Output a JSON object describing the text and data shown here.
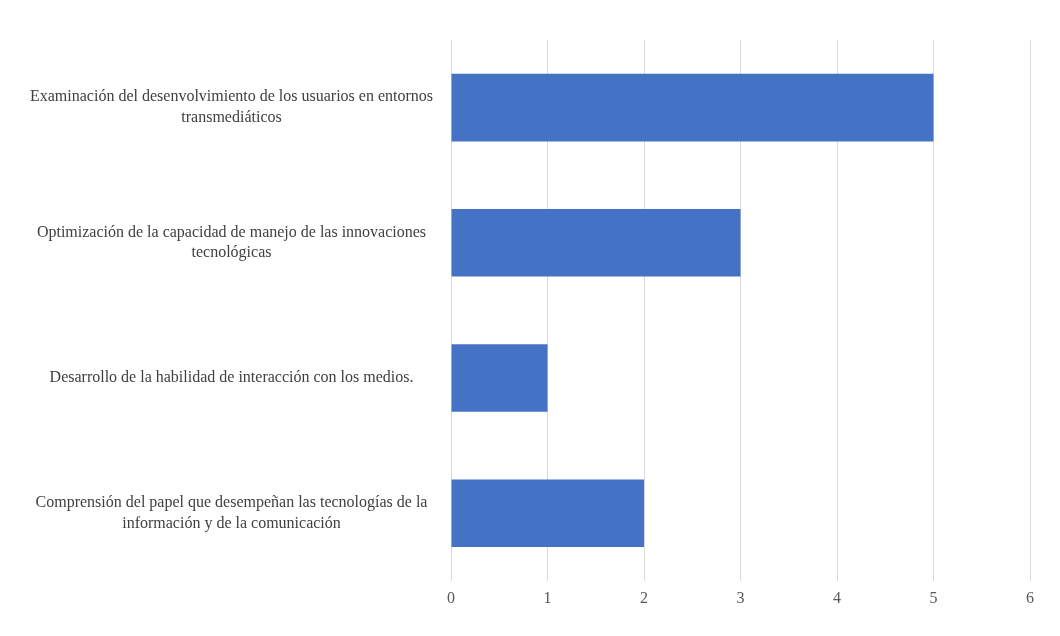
{
  "chart_data": {
    "type": "bar",
    "orientation": "horizontal",
    "categories": [
      "Examinación del desenvolvimiento de los usuarios en entornos transmediáticos",
      "Optimización de la capacidad de manejo de las innovaciones tecnológicas",
      "Desarrollo de la habilidad de interacción con los medios.",
      "Comprensión del papel que desempeñan las tecnologías de la información y de la comunicación"
    ],
    "values": [
      5,
      3,
      1,
      2
    ],
    "color": "#4472c4",
    "xlim": [
      0,
      6
    ],
    "xticks": [
      0,
      1,
      2,
      3,
      4,
      5,
      6
    ],
    "grid": "x",
    "legend": false
  }
}
